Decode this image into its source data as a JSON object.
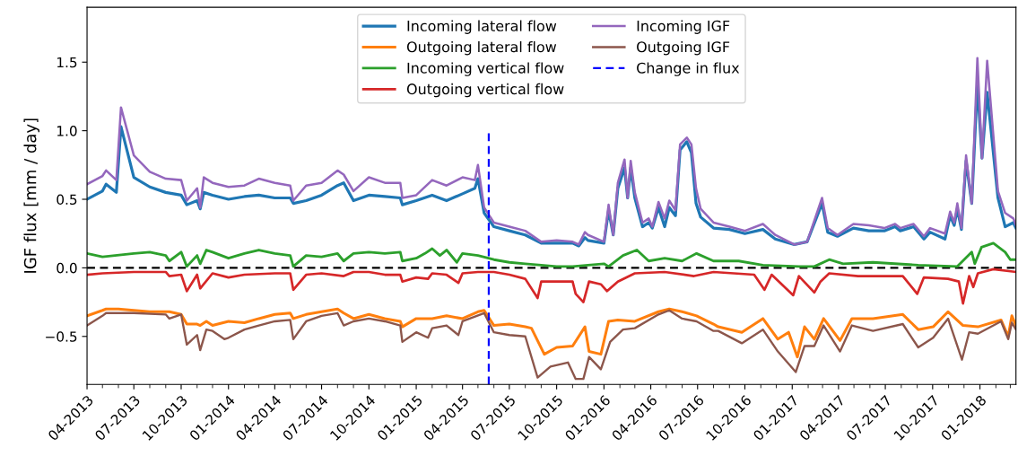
{
  "chart_data": {
    "type": "line",
    "ylabel": "IGF flux [mm / day]",
    "xlim": [
      "2013-04-01",
      "2018-03-12"
    ],
    "ylim": [
      -0.85,
      1.9
    ],
    "yticks": [
      {
        "value": -0.5,
        "label": "−0.5"
      },
      {
        "value": 0,
        "label": "0.0"
      },
      {
        "value": 0.5,
        "label": "0.5"
      },
      {
        "value": 1,
        "label": "1.0"
      },
      {
        "value": 1.5,
        "label": "1.5"
      }
    ],
    "xticks": [
      {
        "value": "2013-04-01",
        "label": "04-2013"
      },
      {
        "value": "2013-05-01",
        "label": null
      },
      {
        "value": "2013-06-01",
        "label": null
      },
      {
        "value": "2013-07-01",
        "label": "07-2013"
      },
      {
        "value": "2013-08-01",
        "label": null
      },
      {
        "value": "2013-09-01",
        "label": null
      },
      {
        "value": "2013-10-01",
        "label": "10-2013"
      },
      {
        "value": "2013-11-01",
        "label": null
      },
      {
        "value": "2013-12-01",
        "label": null
      },
      {
        "value": "2014-01-01",
        "label": "01-2014"
      },
      {
        "value": "2014-02-01",
        "label": null
      },
      {
        "value": "2014-03-01",
        "label": null
      },
      {
        "value": "2014-04-01",
        "label": "04-2014"
      },
      {
        "value": "2014-05-01",
        "label": null
      },
      {
        "value": "2014-06-01",
        "label": null
      },
      {
        "value": "2014-07-01",
        "label": "07-2014"
      },
      {
        "value": "2014-08-01",
        "label": null
      },
      {
        "value": "2014-09-01",
        "label": null
      },
      {
        "value": "2014-10-01",
        "label": "10-2014"
      },
      {
        "value": "2014-11-01",
        "label": null
      },
      {
        "value": "2014-12-01",
        "label": null
      },
      {
        "value": "2015-01-01",
        "label": "01-2015"
      },
      {
        "value": "2015-02-01",
        "label": null
      },
      {
        "value": "2015-03-01",
        "label": null
      },
      {
        "value": "2015-04-01",
        "label": "04-2015"
      },
      {
        "value": "2015-05-01",
        "label": null
      },
      {
        "value": "2015-06-01",
        "label": null
      },
      {
        "value": "2015-07-01",
        "label": "07-2015"
      },
      {
        "value": "2015-08-01",
        "label": null
      },
      {
        "value": "2015-09-01",
        "label": null
      },
      {
        "value": "2015-10-01",
        "label": "10-2015"
      },
      {
        "value": "2015-11-01",
        "label": null
      },
      {
        "value": "2015-12-01",
        "label": null
      },
      {
        "value": "2016-01-01",
        "label": "01-2016"
      },
      {
        "value": "2016-02-01",
        "label": null
      },
      {
        "value": "2016-03-01",
        "label": null
      },
      {
        "value": "2016-04-01",
        "label": "04-2016"
      },
      {
        "value": "2016-05-01",
        "label": null
      },
      {
        "value": "2016-06-01",
        "label": null
      },
      {
        "value": "2016-07-01",
        "label": "07-2016"
      },
      {
        "value": "2016-08-01",
        "label": null
      },
      {
        "value": "2016-09-01",
        "label": null
      },
      {
        "value": "2016-10-01",
        "label": "10-2016"
      },
      {
        "value": "2016-11-01",
        "label": null
      },
      {
        "value": "2016-12-01",
        "label": null
      },
      {
        "value": "2017-01-01",
        "label": "01-2017"
      },
      {
        "value": "2017-02-01",
        "label": null
      },
      {
        "value": "2017-03-01",
        "label": null
      },
      {
        "value": "2017-04-01",
        "label": "04-2017"
      },
      {
        "value": "2017-05-01",
        "label": null
      },
      {
        "value": "2017-06-01",
        "label": null
      },
      {
        "value": "2017-07-01",
        "label": "07-2017"
      },
      {
        "value": "2017-08-01",
        "label": null
      },
      {
        "value": "2017-09-01",
        "label": null
      },
      {
        "value": "2017-10-01",
        "label": "10-2017"
      },
      {
        "value": "2017-11-01",
        "label": null
      },
      {
        "value": "2017-12-01",
        "label": null
      },
      {
        "value": "2018-01-01",
        "label": "01-2018"
      },
      {
        "value": "2018-02-01",
        "label": null
      },
      {
        "value": "2018-03-01",
        "label": null
      }
    ],
    "grid": false,
    "legend": "top",
    "ref_lines": [
      {
        "axis": "y",
        "value": 0,
        "color": "#000000",
        "line_style": "dashed"
      }
    ],
    "series": [
      {
        "name": "Incoming lateral flow",
        "color": "#1f77b4",
        "x": [
          "2013-04-01",
          "2013-05-01",
          "2013-05-08",
          "2013-05-28",
          "2013-06-06",
          "2013-07-01",
          "2013-08-01",
          "2013-09-01",
          "2013-10-01",
          "2013-10-12",
          "2013-11-01",
          "2013-11-07",
          "2013-11-14",
          "2013-12-01",
          "2014-01-01",
          "2014-02-01",
          "2014-03-01",
          "2014-04-01",
          "2014-05-01",
          "2014-05-07",
          "2014-06-01",
          "2014-07-01",
          "2014-08-01",
          "2014-08-13",
          "2014-09-01",
          "2014-10-01",
          "2014-11-01",
          "2014-12-01",
          "2014-12-05",
          "2015-01-01",
          "2015-02-01",
          "2015-03-01",
          "2015-04-01",
          "2015-04-25",
          "2015-05-01",
          "2015-05-13",
          "2015-06-01",
          "2015-07-01",
          "2015-08-01",
          "2015-09-01",
          "2015-10-01",
          "2015-11-01",
          "2015-11-13",
          "2015-11-25",
          "2015-12-01",
          "2016-01-01",
          "2016-01-10",
          "2016-01-19",
          "2016-01-28",
          "2016-02-10",
          "2016-02-16",
          "2016-02-22",
          "2016-03-01",
          "2016-03-16",
          "2016-03-28",
          "2016-04-04",
          "2016-04-16",
          "2016-04-28",
          "2016-05-07",
          "2016-05-19",
          "2016-05-28",
          "2016-06-10",
          "2016-06-19",
          "2016-06-28",
          "2016-07-07",
          "2016-08-01",
          "2016-09-01",
          "2016-10-01",
          "2016-11-05",
          "2016-11-29",
          "2017-01-05",
          "2017-01-30",
          "2017-02-28",
          "2017-03-11",
          "2017-03-30",
          "2017-04-30",
          "2017-05-30",
          "2017-06-29",
          "2017-07-20",
          "2017-07-30",
          "2017-08-25",
          "2017-09-14",
          "2017-09-26",
          "2017-10-25",
          "2017-11-04",
          "2017-11-12",
          "2017-11-18",
          "2017-11-26",
          "2017-12-05",
          "2017-12-16",
          "2017-12-27",
          "2018-01-05",
          "2018-01-15",
          "2018-02-05",
          "2018-02-19",
          "2018-03-07",
          "2018-03-12"
        ],
        "values": [
          0.5,
          0.56,
          0.61,
          0.55,
          1.03,
          0.66,
          0.59,
          0.55,
          0.53,
          0.46,
          0.49,
          0.43,
          0.55,
          0.53,
          0.5,
          0.52,
          0.53,
          0.51,
          0.51,
          0.47,
          0.49,
          0.53,
          0.6,
          0.62,
          0.49,
          0.53,
          0.52,
          0.51,
          0.46,
          0.49,
          0.53,
          0.49,
          0.54,
          0.58,
          0.65,
          0.4,
          0.3,
          0.27,
          0.24,
          0.18,
          0.18,
          0.18,
          0.16,
          0.22,
          0.2,
          0.18,
          0.42,
          0.24,
          0.58,
          0.73,
          0.51,
          0.73,
          0.51,
          0.3,
          0.33,
          0.29,
          0.44,
          0.3,
          0.44,
          0.38,
          0.86,
          0.92,
          0.84,
          0.47,
          0.37,
          0.29,
          0.28,
          0.25,
          0.28,
          0.21,
          0.17,
          0.19,
          0.47,
          0.26,
          0.23,
          0.29,
          0.27,
          0.27,
          0.3,
          0.27,
          0.3,
          0.21,
          0.26,
          0.21,
          0.38,
          0.31,
          0.43,
          0.28,
          0.78,
          0.47,
          1.34,
          0.8,
          1.28,
          0.51,
          0.3,
          0.33,
          0.29
        ]
      },
      {
        "name": "Outgoing lateral flow",
        "color": "#ff7f0e",
        "x": [
          "2013-04-01",
          "2013-05-01",
          "2013-05-08",
          "2013-06-01",
          "2013-07-01",
          "2013-08-01",
          "2013-09-01",
          "2013-09-08",
          "2013-10-01",
          "2013-10-12",
          "2013-11-01",
          "2013-11-07",
          "2013-11-19",
          "2013-12-01",
          "2014-01-01",
          "2014-02-01",
          "2014-03-01",
          "2014-04-01",
          "2014-05-01",
          "2014-05-07",
          "2014-06-01",
          "2014-07-01",
          "2014-08-01",
          "2014-08-13",
          "2014-09-01",
          "2014-10-01",
          "2014-11-01",
          "2014-12-01",
          "2014-12-05",
          "2015-01-01",
          "2015-02-01",
          "2015-03-01",
          "2015-04-01",
          "2015-05-01",
          "2015-05-13",
          "2015-06-01",
          "2015-07-01",
          "2015-08-01",
          "2015-08-13",
          "2015-09-07",
          "2015-10-01",
          "2015-11-01",
          "2015-11-25",
          "2015-12-03",
          "2015-12-26",
          "2016-01-10",
          "2016-01-28",
          "2016-03-01",
          "2016-04-16",
          "2016-05-07",
          "2016-06-01",
          "2016-06-29",
          "2016-08-01",
          "2016-08-10",
          "2016-09-25",
          "2016-11-05",
          "2016-12-04",
          "2016-12-25",
          "2017-01-11",
          "2017-01-25",
          "2017-02-13",
          "2017-03-03",
          "2017-04-04",
          "2017-04-27",
          "2017-06-07",
          "2017-08-04",
          "2017-09-03",
          "2017-10-02",
          "2017-10-31",
          "2017-11-29",
          "2017-12-28",
          "2018-02-11",
          "2018-02-25",
          "2018-03-04",
          "2018-03-12"
        ],
        "values": [
          -0.35,
          -0.31,
          -0.3,
          -0.3,
          -0.31,
          -0.32,
          -0.32,
          -0.32,
          -0.34,
          -0.41,
          -0.41,
          -0.42,
          -0.39,
          -0.42,
          -0.39,
          -0.4,
          -0.37,
          -0.34,
          -0.33,
          -0.37,
          -0.34,
          -0.32,
          -0.3,
          -0.33,
          -0.37,
          -0.34,
          -0.37,
          -0.39,
          -0.43,
          -0.37,
          -0.37,
          -0.35,
          -0.37,
          -0.32,
          -0.31,
          -0.42,
          -0.41,
          -0.43,
          -0.44,
          -0.63,
          -0.58,
          -0.57,
          -0.43,
          -0.61,
          -0.63,
          -0.39,
          -0.38,
          -0.39,
          -0.32,
          -0.3,
          -0.32,
          -0.35,
          -0.41,
          -0.43,
          -0.47,
          -0.37,
          -0.52,
          -0.47,
          -0.65,
          -0.43,
          -0.52,
          -0.37,
          -0.53,
          -0.37,
          -0.37,
          -0.34,
          -0.45,
          -0.43,
          -0.32,
          -0.42,
          -0.43,
          -0.38,
          -0.5,
          -0.35,
          -0.42
        ]
      },
      {
        "name": "Incoming vertical flow",
        "color": "#2ca02c",
        "x": [
          "2013-04-01",
          "2013-05-01",
          "2013-07-01",
          "2013-08-01",
          "2013-09-01",
          "2013-09-08",
          "2013-10-01",
          "2013-10-12",
          "2013-11-01",
          "2013-11-07",
          "2013-11-19",
          "2013-12-01",
          "2014-01-01",
          "2014-02-01",
          "2014-03-01",
          "2014-04-01",
          "2014-05-01",
          "2014-05-07",
          "2014-06-01",
          "2014-07-01",
          "2014-08-01",
          "2014-08-13",
          "2014-09-01",
          "2014-10-01",
          "2014-11-01",
          "2014-12-01",
          "2014-12-05",
          "2015-01-01",
          "2015-01-18",
          "2015-02-01",
          "2015-02-16",
          "2015-03-01",
          "2015-03-21",
          "2015-04-01",
          "2015-05-01",
          "2015-06-01",
          "2015-07-01",
          "2015-08-01",
          "2015-09-01",
          "2015-10-01",
          "2015-11-01",
          "2015-12-01",
          "2016-01-01",
          "2016-01-10",
          "2016-02-07",
          "2016-03-05",
          "2016-03-28",
          "2016-04-28",
          "2016-06-01",
          "2016-06-29",
          "2016-08-01",
          "2016-09-19",
          "2016-11-05",
          "2017-01-14",
          "2017-02-13",
          "2017-03-14",
          "2017-04-10",
          "2017-06-07",
          "2017-09-03",
          "2017-11-18",
          "2017-12-16",
          "2017-12-22",
          "2018-01-04",
          "2018-01-27",
          "2018-02-19",
          "2018-03-01",
          "2018-03-12"
        ],
        "values": [
          0.105,
          0.08,
          0.105,
          0.115,
          0.09,
          0.05,
          0.115,
          0.01,
          0.09,
          0.03,
          0.13,
          0.115,
          0.07,
          0.105,
          0.13,
          0.105,
          0.09,
          0.01,
          0.09,
          0.08,
          0.105,
          0.05,
          0.105,
          0.115,
          0.105,
          0.115,
          0.05,
          0.07,
          0.105,
          0.14,
          0.09,
          0.13,
          0.04,
          0.105,
          0.09,
          0.06,
          0.04,
          0.03,
          0.02,
          0.01,
          0.01,
          0.02,
          0.03,
          0.01,
          0.09,
          0.13,
          0.05,
          0.07,
          0.05,
          0.105,
          0.05,
          0.05,
          0.02,
          0.01,
          0.01,
          0.06,
          0.03,
          0.04,
          0.02,
          0.01,
          0.115,
          0.03,
          0.15,
          0.18,
          0.115,
          0.06,
          0.06
        ]
      },
      {
        "name": "Outgoing vertical flow",
        "color": "#d62728",
        "x": [
          "2013-04-01",
          "2013-05-01",
          "2013-07-01",
          "2013-09-01",
          "2013-09-08",
          "2013-10-01",
          "2013-10-12",
          "2013-11-01",
          "2013-11-07",
          "2013-12-01",
          "2014-01-01",
          "2014-02-01",
          "2014-04-01",
          "2014-05-01",
          "2014-05-07",
          "2014-06-01",
          "2014-07-01",
          "2014-08-13",
          "2014-09-01",
          "2014-10-01",
          "2014-11-01",
          "2014-12-01",
          "2014-12-05",
          "2015-01-01",
          "2015-01-24",
          "2015-02-01",
          "2015-03-01",
          "2015-03-24",
          "2015-04-01",
          "2015-05-01",
          "2015-06-01",
          "2015-07-01",
          "2015-08-01",
          "2015-08-25",
          "2015-09-01",
          "2015-10-01",
          "2015-11-01",
          "2015-11-07",
          "2015-11-22",
          "2015-12-03",
          "2015-12-26",
          "2016-01-07",
          "2016-01-28",
          "2016-03-01",
          "2016-04-28",
          "2016-06-24",
          "2016-08-01",
          "2016-10-19",
          "2016-11-08",
          "2016-11-22",
          "2017-01-03",
          "2017-01-14",
          "2017-02-13",
          "2017-02-25",
          "2017-03-14",
          "2017-05-09",
          "2017-08-04",
          "2017-09-01",
          "2017-09-14",
          "2017-10-31",
          "2017-11-21",
          "2017-11-29",
          "2017-12-11",
          "2017-12-19",
          "2017-12-28",
          "2018-01-27",
          "2018-03-12"
        ],
        "values": [
          -0.05,
          -0.04,
          -0.03,
          -0.03,
          -0.06,
          -0.05,
          -0.17,
          -0.05,
          -0.15,
          -0.04,
          -0.07,
          -0.05,
          -0.04,
          -0.04,
          -0.16,
          -0.05,
          -0.04,
          -0.06,
          -0.03,
          -0.03,
          -0.05,
          -0.05,
          -0.1,
          -0.07,
          -0.08,
          -0.04,
          -0.05,
          -0.11,
          -0.04,
          -0.03,
          -0.03,
          -0.05,
          -0.08,
          -0.22,
          -0.1,
          -0.1,
          -0.1,
          -0.19,
          -0.25,
          -0.1,
          -0.12,
          -0.17,
          -0.1,
          -0.04,
          -0.03,
          -0.06,
          -0.03,
          -0.05,
          -0.16,
          -0.05,
          -0.2,
          -0.06,
          -0.18,
          -0.1,
          -0.04,
          -0.06,
          -0.06,
          -0.19,
          -0.07,
          -0.08,
          -0.1,
          -0.26,
          -0.06,
          -0.14,
          -0.04,
          -0.01,
          -0.03
        ]
      },
      {
        "name": "Incoming IGF",
        "color": "#9467bd",
        "x": [
          "2013-04-01",
          "2013-05-01",
          "2013-05-08",
          "2013-05-28",
          "2013-06-06",
          "2013-07-01",
          "2013-08-01",
          "2013-09-01",
          "2013-10-01",
          "2013-10-12",
          "2013-11-01",
          "2013-11-07",
          "2013-11-14",
          "2013-12-01",
          "2014-01-01",
          "2014-02-01",
          "2014-03-01",
          "2014-04-01",
          "2014-05-01",
          "2014-05-07",
          "2014-06-01",
          "2014-07-01",
          "2014-08-01",
          "2014-08-13",
          "2014-09-01",
          "2014-10-01",
          "2014-11-01",
          "2014-12-01",
          "2014-12-05",
          "2015-01-01",
          "2015-02-01",
          "2015-03-01",
          "2015-04-01",
          "2015-04-25",
          "2015-05-01",
          "2015-05-13",
          "2015-06-01",
          "2015-07-01",
          "2015-08-01",
          "2015-09-01",
          "2015-10-01",
          "2015-11-01",
          "2015-11-13",
          "2015-11-25",
          "2015-12-01",
          "2016-01-01",
          "2016-01-10",
          "2016-01-19",
          "2016-01-28",
          "2016-02-10",
          "2016-02-16",
          "2016-02-22",
          "2016-03-01",
          "2016-03-16",
          "2016-03-28",
          "2016-04-04",
          "2016-04-16",
          "2016-04-28",
          "2016-05-07",
          "2016-05-19",
          "2016-05-28",
          "2016-06-10",
          "2016-06-19",
          "2016-06-28",
          "2016-07-07",
          "2016-08-01",
          "2016-09-01",
          "2016-10-01",
          "2016-11-05",
          "2016-11-29",
          "2017-01-05",
          "2017-01-30",
          "2017-02-28",
          "2017-03-11",
          "2017-03-30",
          "2017-04-30",
          "2017-05-30",
          "2017-06-29",
          "2017-07-20",
          "2017-07-30",
          "2017-08-25",
          "2017-09-14",
          "2017-09-26",
          "2017-10-25",
          "2017-11-04",
          "2017-11-12",
          "2017-11-18",
          "2017-11-26",
          "2017-12-05",
          "2017-12-16",
          "2017-12-27",
          "2018-01-05",
          "2018-01-15",
          "2018-02-05",
          "2018-02-19",
          "2018-03-07",
          "2018-03-12"
        ],
        "values": [
          0.61,
          0.67,
          0.71,
          0.64,
          1.17,
          0.82,
          0.7,
          0.65,
          0.64,
          0.49,
          0.58,
          0.44,
          0.66,
          0.62,
          0.59,
          0.6,
          0.65,
          0.62,
          0.6,
          0.49,
          0.6,
          0.62,
          0.71,
          0.68,
          0.56,
          0.66,
          0.62,
          0.62,
          0.51,
          0.53,
          0.64,
          0.6,
          0.66,
          0.64,
          0.75,
          0.44,
          0.33,
          0.3,
          0.27,
          0.19,
          0.2,
          0.19,
          0.17,
          0.26,
          0.24,
          0.19,
          0.46,
          0.24,
          0.62,
          0.79,
          0.51,
          0.78,
          0.55,
          0.33,
          0.36,
          0.3,
          0.48,
          0.36,
          0.49,
          0.42,
          0.9,
          0.95,
          0.9,
          0.58,
          0.43,
          0.33,
          0.3,
          0.27,
          0.32,
          0.24,
          0.17,
          0.19,
          0.51,
          0.29,
          0.24,
          0.32,
          0.31,
          0.29,
          0.32,
          0.29,
          0.32,
          0.23,
          0.29,
          0.25,
          0.41,
          0.33,
          0.47,
          0.29,
          0.82,
          0.47,
          1.53,
          0.8,
          1.51,
          0.56,
          0.4,
          0.36,
          0.31
        ]
      },
      {
        "name": "Outgoing IGF",
        "color": "#8c564b",
        "x": [
          "2013-04-01",
          "2013-05-01",
          "2013-05-08",
          "2013-07-01",
          "2013-09-01",
          "2013-09-08",
          "2013-10-01",
          "2013-10-12",
          "2013-11-01",
          "2013-11-07",
          "2013-11-19",
          "2013-12-01",
          "2013-12-24",
          "2014-01-01",
          "2014-02-01",
          "2014-03-01",
          "2014-04-01",
          "2014-05-01",
          "2014-05-07",
          "2014-06-01",
          "2014-07-01",
          "2014-08-01",
          "2014-08-13",
          "2014-09-01",
          "2014-10-01",
          "2014-11-01",
          "2014-12-01",
          "2014-12-05",
          "2015-01-01",
          "2015-01-24",
          "2015-02-01",
          "2015-03-01",
          "2015-03-24",
          "2015-04-01",
          "2015-05-13",
          "2015-06-01",
          "2015-07-01",
          "2015-08-01",
          "2015-08-25",
          "2015-09-19",
          "2015-10-23",
          "2015-11-07",
          "2015-11-22",
          "2015-12-03",
          "2015-12-26",
          "2016-01-13",
          "2016-02-07",
          "2016-03-01",
          "2016-04-16",
          "2016-05-07",
          "2016-06-01",
          "2016-06-29",
          "2016-08-01",
          "2016-08-10",
          "2016-09-25",
          "2016-11-05",
          "2016-12-04",
          "2017-01-08",
          "2017-01-25",
          "2017-02-13",
          "2017-03-03",
          "2017-04-04",
          "2017-04-27",
          "2017-06-07",
          "2017-08-04",
          "2017-09-03",
          "2017-10-02",
          "2017-10-31",
          "2017-11-27",
          "2017-12-11",
          "2017-12-28",
          "2018-02-11",
          "2018-02-25",
          "2018-03-04",
          "2018-03-12"
        ],
        "values": [
          -0.42,
          -0.35,
          -0.33,
          -0.33,
          -0.34,
          -0.37,
          -0.34,
          -0.56,
          -0.49,
          -0.6,
          -0.45,
          -0.46,
          -0.52,
          -0.51,
          -0.45,
          -0.42,
          -0.39,
          -0.38,
          -0.52,
          -0.39,
          -0.35,
          -0.33,
          -0.42,
          -0.39,
          -0.37,
          -0.39,
          -0.42,
          -0.54,
          -0.47,
          -0.51,
          -0.44,
          -0.42,
          -0.49,
          -0.39,
          -0.33,
          -0.47,
          -0.49,
          -0.5,
          -0.8,
          -0.72,
          -0.69,
          -0.81,
          -0.81,
          -0.65,
          -0.74,
          -0.54,
          -0.45,
          -0.44,
          -0.34,
          -0.31,
          -0.37,
          -0.39,
          -0.46,
          -0.46,
          -0.55,
          -0.45,
          -0.61,
          -0.76,
          -0.57,
          -0.57,
          -0.42,
          -0.61,
          -0.42,
          -0.46,
          -0.41,
          -0.58,
          -0.51,
          -0.37,
          -0.67,
          -0.47,
          -0.48,
          -0.39,
          -0.52,
          -0.4,
          -0.45
        ]
      },
      {
        "name": "Change in flux",
        "color": "#0000ff",
        "line_style": "dashed",
        "x": [
          "2015-05-22",
          "2015-05-22"
        ],
        "values": [
          -0.85,
          1.0
        ]
      }
    ]
  }
}
